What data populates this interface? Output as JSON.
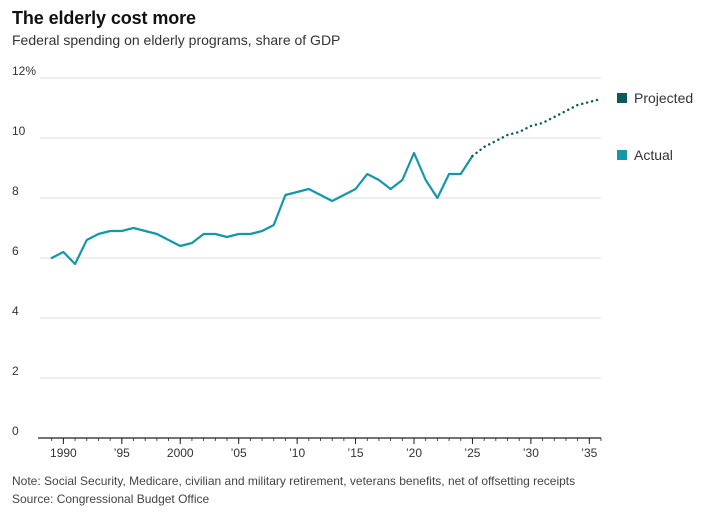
{
  "colors": {
    "actual": "#1497a8",
    "projected": "#0a5a5e",
    "grid": "#dcdcdc",
    "axis": "#222222"
  },
  "chart_data": {
    "type": "line",
    "title": "The elderly cost more",
    "subtitle": "Federal spending on elderly programs, share of GDP",
    "xlabel": "",
    "ylabel": "",
    "xlim": [
      1988,
      2036
    ],
    "ylim": [
      0,
      12
    ],
    "y_ticks": [
      0,
      2,
      4,
      6,
      8,
      10,
      12
    ],
    "y_tick_labels": [
      "0",
      "2",
      "4",
      "6",
      "8",
      "10",
      "12%"
    ],
    "x_ticks": [
      1990,
      1995,
      2000,
      2005,
      2010,
      2015,
      2020,
      2025,
      2030,
      2035
    ],
    "x_tick_labels": [
      "1990",
      "’95",
      "2000",
      "’05",
      "’10",
      "’15",
      "’20",
      "’25",
      "’30",
      "’35"
    ],
    "grid": true,
    "legend_position": "right",
    "series": [
      {
        "name": "Actual",
        "style": "solid",
        "x": [
          1989,
          1990,
          1991,
          1992,
          1993,
          1994,
          1995,
          1996,
          1997,
          1998,
          1999,
          2000,
          2001,
          2002,
          2003,
          2004,
          2005,
          2006,
          2007,
          2008,
          2009,
          2010,
          2011,
          2012,
          2013,
          2014,
          2015,
          2016,
          2017,
          2018,
          2019,
          2020,
          2021,
          2022,
          2023,
          2024,
          2025
        ],
        "values": [
          6.0,
          6.2,
          5.8,
          6.6,
          6.8,
          6.9,
          6.9,
          7.0,
          6.9,
          6.8,
          6.6,
          6.4,
          6.5,
          6.8,
          6.8,
          6.7,
          6.8,
          6.8,
          6.9,
          7.1,
          8.1,
          8.2,
          8.3,
          8.1,
          7.9,
          8.1,
          8.3,
          8.8,
          8.6,
          8.3,
          8.6,
          9.5,
          8.6,
          8.0,
          8.8,
          8.8,
          9.4
        ]
      },
      {
        "name": "Projected",
        "style": "dotted",
        "x": [
          2025,
          2026,
          2027,
          2028,
          2029,
          2030,
          2031,
          2032,
          2033,
          2034,
          2035,
          2036
        ],
        "values": [
          9.4,
          9.7,
          9.9,
          10.1,
          10.2,
          10.4,
          10.5,
          10.7,
          10.9,
          11.1,
          11.2,
          11.3
        ]
      }
    ]
  },
  "legend": [
    {
      "label": "Projected",
      "color": "#0a5a5e"
    },
    {
      "label": "Actual",
      "color": "#1497a8"
    }
  ],
  "note": "Note: Social Security, Medicare, civilian and military retirement, veterans benefits, net of offsetting receipts",
  "source": "Source: Congressional Budget Office"
}
